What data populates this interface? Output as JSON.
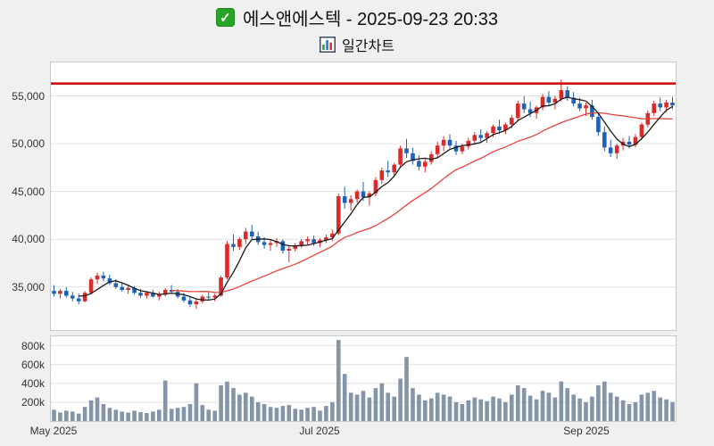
{
  "header": {
    "title": "에스앤에스텍 - 2025-09-23 20:33",
    "subtitle": "일간차트",
    "icons": [
      "check-icon",
      "bar-chart-icon"
    ]
  },
  "colors": {
    "up": "#d92b2b",
    "down": "#1c62b7",
    "ma_fast": "#1a1a1a",
    "ma_slow": "#e8453c",
    "limit_line": "#cc0000",
    "volume_bar": "#8494a9",
    "grid": "#e2e2e2",
    "panel_bg": "#ffffff",
    "page_bg": "#f0f0f0"
  },
  "chart_data": {
    "type": "candlestick_with_volume",
    "title": "에스앤에스텍 일간차트",
    "x_ticks": [
      {
        "index": 0,
        "label": "May 2025"
      },
      {
        "index": 43,
        "label": "Jul 2025"
      },
      {
        "index": 86,
        "label": "Sep 2025"
      }
    ],
    "price_axis": {
      "ticks": [
        35000,
        40000,
        45000,
        50000,
        55000
      ],
      "labels": [
        "35,000",
        "40,000",
        "45,000",
        "50,000",
        "55,000"
      ],
      "range": [
        30500,
        58500
      ]
    },
    "volume_axis": {
      "ticks": [
        200000,
        400000,
        600000,
        800000
      ],
      "labels": [
        "200k",
        "400k",
        "600k",
        "800k"
      ],
      "range": [
        0,
        900000
      ]
    },
    "limit_line": 56300,
    "moving_averages": [
      {
        "name": "MA5",
        "period": 5,
        "color_key": "ma_fast"
      },
      {
        "name": "MA20",
        "period": 20,
        "color_key": "ma_slow"
      }
    ],
    "candles": [
      [
        34600,
        35200,
        34000,
        34300,
        120000
      ],
      [
        34300,
        34800,
        33800,
        34600,
        90000
      ],
      [
        34600,
        35000,
        33900,
        34100,
        110000
      ],
      [
        34100,
        34500,
        33500,
        33800,
        100000
      ],
      [
        33800,
        34300,
        33200,
        33500,
        80000
      ],
      [
        33500,
        34600,
        33400,
        34400,
        150000
      ],
      [
        34400,
        36000,
        34200,
        35800,
        220000
      ],
      [
        35800,
        36500,
        35300,
        36200,
        250000
      ],
      [
        36200,
        36600,
        35600,
        35900,
        180000
      ],
      [
        35900,
        36300,
        35200,
        35400,
        140000
      ],
      [
        35400,
        35800,
        34800,
        35000,
        120000
      ],
      [
        35000,
        35500,
        34500,
        34700,
        100000
      ],
      [
        34700,
        35200,
        34300,
        34900,
        90000
      ],
      [
        34900,
        35100,
        34200,
        34400,
        110000
      ],
      [
        34400,
        34800,
        33900,
        34100,
        95000
      ],
      [
        34100,
        34600,
        33800,
        34400,
        85000
      ],
      [
        34400,
        34700,
        33900,
        34000,
        100000
      ],
      [
        34000,
        34500,
        33600,
        34200,
        120000
      ],
      [
        34200,
        34900,
        34000,
        34700,
        430000
      ],
      [
        34700,
        35200,
        34300,
        34500,
        130000
      ],
      [
        34500,
        34800,
        33800,
        34000,
        140000
      ],
      [
        34000,
        34400,
        33400,
        33600,
        150000
      ],
      [
        33600,
        34000,
        32900,
        33200,
        180000
      ],
      [
        33200,
        33800,
        32700,
        33500,
        400000
      ],
      [
        33500,
        34200,
        33300,
        34000,
        170000
      ],
      [
        34000,
        34500,
        33700,
        33900,
        120000
      ],
      [
        33900,
        34300,
        33500,
        34100,
        110000
      ],
      [
        34100,
        36200,
        34000,
        36000,
        380000
      ],
      [
        36000,
        39800,
        35800,
        39500,
        420000
      ],
      [
        39500,
        40500,
        38800,
        39200,
        350000
      ],
      [
        39200,
        40200,
        38900,
        40000,
        280000
      ],
      [
        40000,
        41200,
        39500,
        40800,
        300000
      ],
      [
        40800,
        41500,
        40000,
        40300,
        260000
      ],
      [
        40300,
        40800,
        39400,
        39700,
        200000
      ],
      [
        39700,
        40200,
        39000,
        39400,
        180000
      ],
      [
        39400,
        39900,
        38800,
        39600,
        150000
      ],
      [
        39600,
        40100,
        39200,
        39800,
        140000
      ],
      [
        39800,
        40000,
        38500,
        38800,
        160000
      ],
      [
        38800,
        39400,
        37600,
        39000,
        170000
      ],
      [
        39000,
        39600,
        38700,
        39300,
        130000
      ],
      [
        39300,
        40000,
        39100,
        39800,
        120000
      ],
      [
        39800,
        40300,
        39400,
        40000,
        140000
      ],
      [
        40000,
        40400,
        39300,
        39600,
        150000
      ],
      [
        39600,
        40100,
        39200,
        39900,
        110000
      ],
      [
        39900,
        40500,
        39600,
        40200,
        160000
      ],
      [
        40200,
        41000,
        39800,
        40600,
        200000
      ],
      [
        40600,
        44800,
        40400,
        44500,
        860000
      ],
      [
        44500,
        45500,
        43200,
        43800,
        500000
      ],
      [
        43800,
        44600,
        43000,
        44200,
        300000
      ],
      [
        44200,
        45200,
        43800,
        45000,
        280000
      ],
      [
        45000,
        46000,
        44000,
        44400,
        320000
      ],
      [
        44400,
        45000,
        43500,
        44800,
        250000
      ],
      [
        44800,
        46500,
        44500,
        46200,
        350000
      ],
      [
        46200,
        47500,
        45800,
        47200,
        400000
      ],
      [
        47200,
        48200,
        46500,
        47000,
        300000
      ],
      [
        47000,
        48000,
        46600,
        47800,
        260000
      ],
      [
        47800,
        49800,
        47500,
        49500,
        450000
      ],
      [
        49500,
        50500,
        48500,
        49000,
        680000
      ],
      [
        49000,
        49600,
        47800,
        48200,
        350000
      ],
      [
        48200,
        48800,
        47200,
        47600,
        280000
      ],
      [
        47600,
        48400,
        47000,
        48100,
        220000
      ],
      [
        48100,
        49200,
        47800,
        48900,
        240000
      ],
      [
        48900,
        50200,
        48500,
        49800,
        300000
      ],
      [
        49800,
        50800,
        49200,
        50400,
        280000
      ],
      [
        50400,
        51000,
        49500,
        49800,
        260000
      ],
      [
        49800,
        50300,
        48800,
        49200,
        200000
      ],
      [
        49200,
        50000,
        48900,
        49700,
        180000
      ],
      [
        49700,
        50600,
        49400,
        50300,
        220000
      ],
      [
        50300,
        51200,
        49900,
        50900,
        250000
      ],
      [
        50900,
        51500,
        50200,
        50600,
        230000
      ],
      [
        50600,
        51300,
        50100,
        51100,
        210000
      ],
      [
        51100,
        52000,
        50700,
        51800,
        260000
      ],
      [
        51800,
        52500,
        51000,
        51400,
        240000
      ],
      [
        51400,
        52200,
        51000,
        52000,
        200000
      ],
      [
        52000,
        53000,
        51600,
        52700,
        280000
      ],
      [
        52700,
        54500,
        52300,
        54200,
        380000
      ],
      [
        54200,
        55000,
        53200,
        53600,
        350000
      ],
      [
        53600,
        54400,
        52800,
        53200,
        270000
      ],
      [
        53200,
        54000,
        52600,
        53800,
        230000
      ],
      [
        53800,
        55200,
        53500,
        54900,
        320000
      ],
      [
        54900,
        55500,
        54000,
        54300,
        300000
      ],
      [
        54300,
        55000,
        53600,
        54700,
        250000
      ],
      [
        54700,
        56700,
        54400,
        55600,
        420000
      ],
      [
        55600,
        56000,
        54500,
        54800,
        350000
      ],
      [
        54800,
        55400,
        53900,
        54200,
        280000
      ],
      [
        54200,
        54800,
        53400,
        53700,
        240000
      ],
      [
        53700,
        54300,
        52900,
        54000,
        200000
      ],
      [
        54000,
        54600,
        52500,
        52800,
        260000
      ],
      [
        52800,
        53300,
        50800,
        51200,
        380000
      ],
      [
        51200,
        51800,
        49200,
        49600,
        420000
      ],
      [
        49600,
        50400,
        48600,
        49000,
        300000
      ],
      [
        49000,
        50000,
        48400,
        49800,
        260000
      ],
      [
        49800,
        50600,
        49300,
        50200,
        220000
      ],
      [
        50200,
        50800,
        49500,
        49900,
        180000
      ],
      [
        49900,
        51000,
        49600,
        50700,
        200000
      ],
      [
        50700,
        52200,
        50400,
        52000,
        280000
      ],
      [
        52000,
        53500,
        51700,
        53200,
        300000
      ],
      [
        53200,
        54500,
        52900,
        54200,
        320000
      ],
      [
        54200,
        54800,
        53400,
        53800,
        250000
      ],
      [
        53800,
        54600,
        53300,
        54300,
        230000
      ],
      [
        54300,
        54900,
        53600,
        54000,
        200000
      ]
    ]
  }
}
